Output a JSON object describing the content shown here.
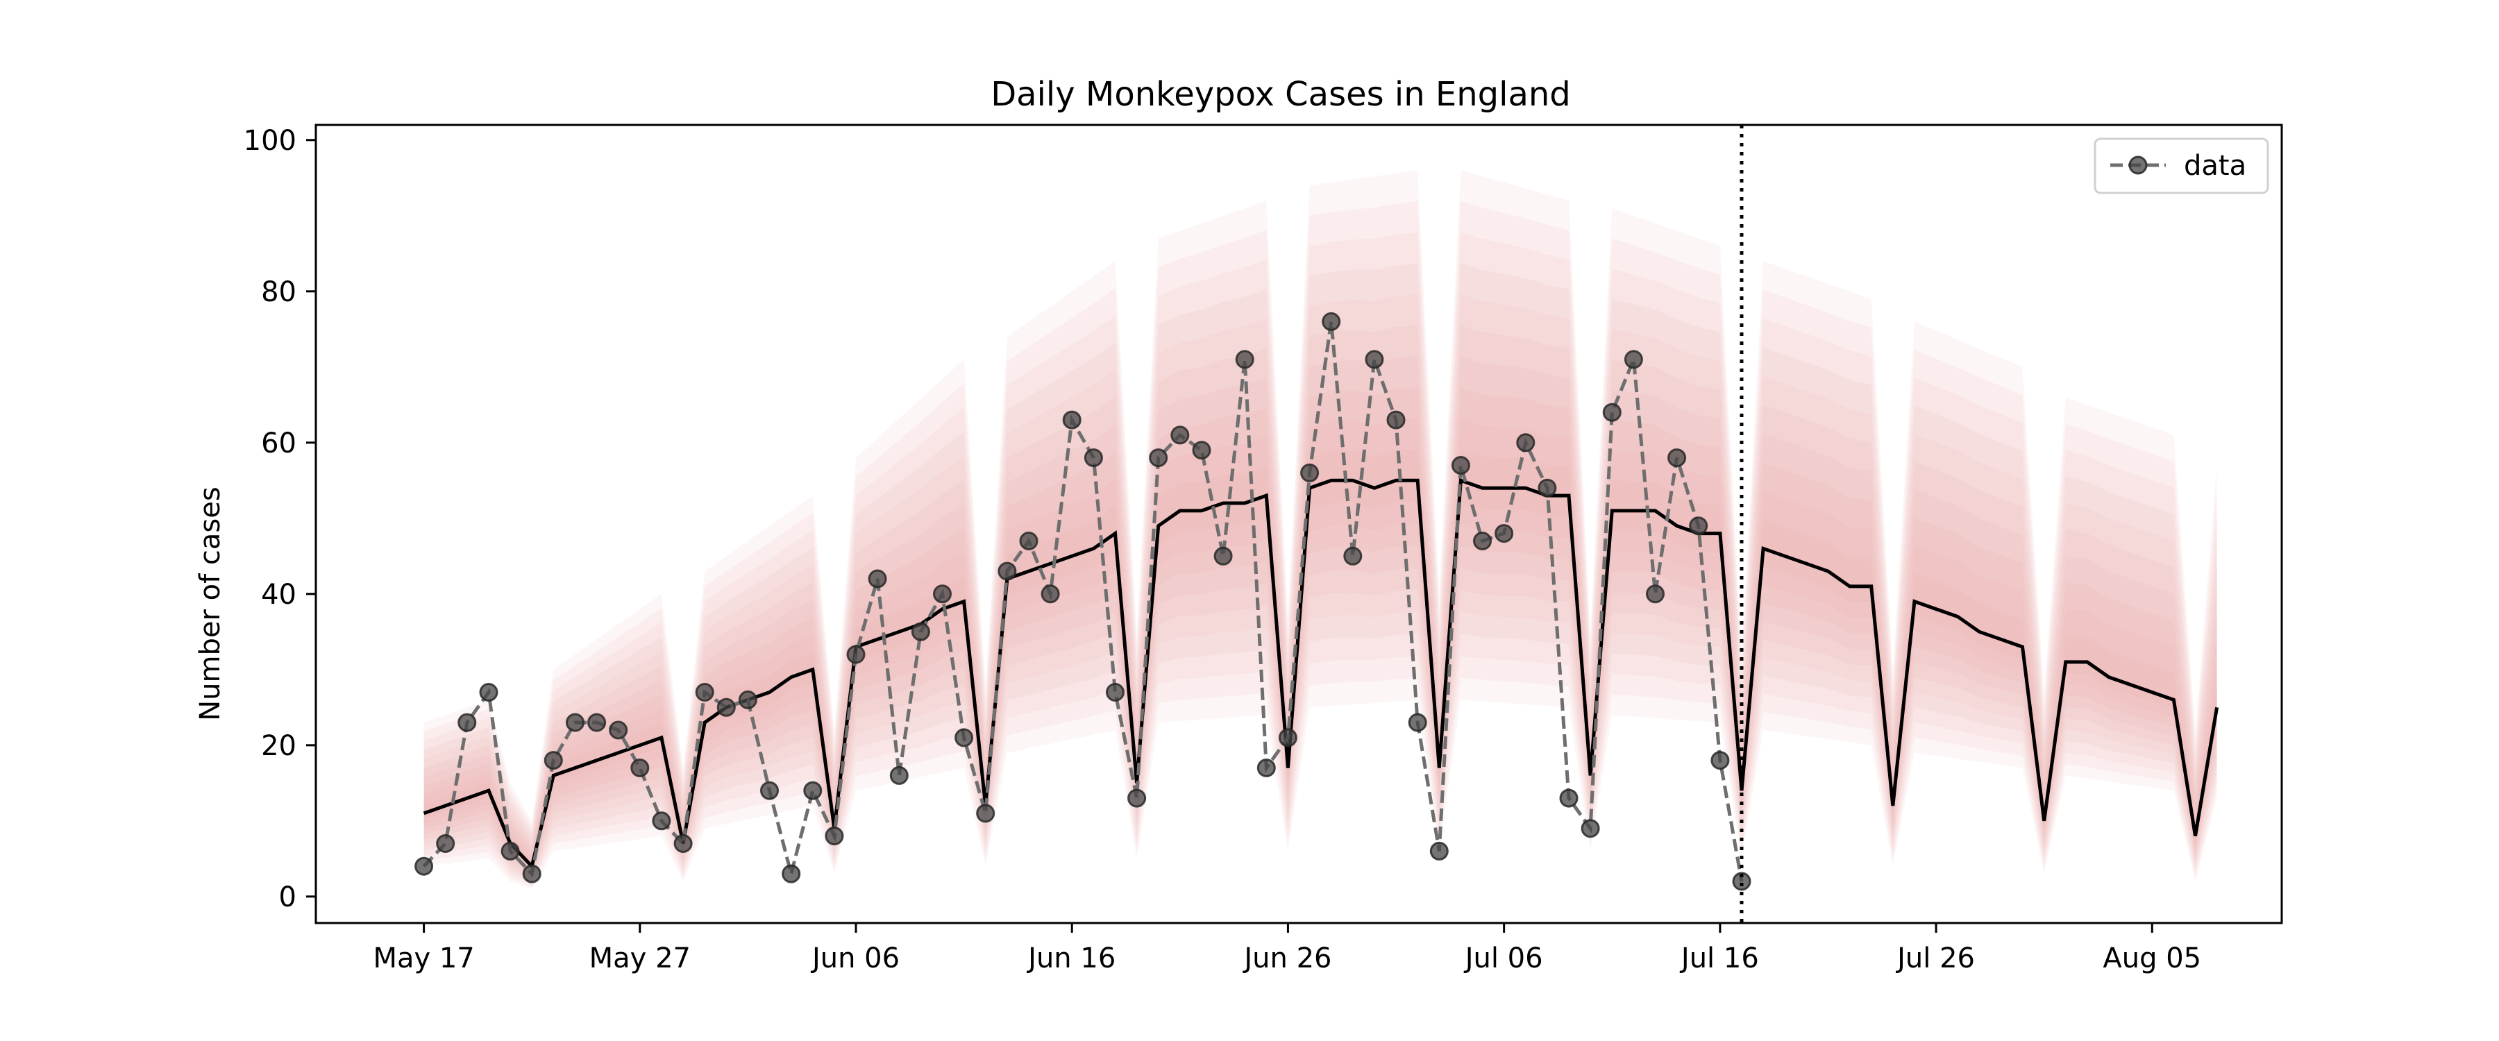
{
  "chart_data": {
    "type": "line",
    "title": "Daily Monkeypox Cases in England",
    "xlabel": "",
    "ylabel": "Number of cases",
    "x_axis": {
      "type": "date",
      "range": [
        "2022-05-12",
        "2022-08-11"
      ],
      "ticks": [
        {
          "date": "2022-05-17",
          "label": "May 17"
        },
        {
          "date": "2022-05-27",
          "label": "May 27"
        },
        {
          "date": "2022-06-06",
          "label": "Jun 06"
        },
        {
          "date": "2022-06-16",
          "label": "Jun 16"
        },
        {
          "date": "2022-06-26",
          "label": "Jun 26"
        },
        {
          "date": "2022-07-06",
          "label": "Jul 06"
        },
        {
          "date": "2022-07-16",
          "label": "Jul 16"
        },
        {
          "date": "2022-07-26",
          "label": "Jul 26"
        },
        {
          "date": "2022-08-05",
          "label": "Aug 05"
        }
      ]
    },
    "y_axis": {
      "range": [
        -3.5,
        102
      ],
      "ticks": [
        0,
        20,
        40,
        60,
        80,
        100
      ]
    },
    "grid": false,
    "legend": {
      "placement": "top-right",
      "entries": [
        "data"
      ]
    },
    "vertical_marker": {
      "date": "2022-07-17",
      "style": "dotted"
    },
    "series": [
      {
        "name": "data",
        "style": "dashed-gray-with-circles",
        "points": [
          [
            "2022-05-17",
            4
          ],
          [
            "2022-05-18",
            7
          ],
          [
            "2022-05-19",
            23
          ],
          [
            "2022-05-20",
            27
          ],
          [
            "2022-05-21",
            6
          ],
          [
            "2022-05-22",
            3
          ],
          [
            "2022-05-23",
            18
          ],
          [
            "2022-05-24",
            23
          ],
          [
            "2022-05-25",
            23
          ],
          [
            "2022-05-26",
            22
          ],
          [
            "2022-05-27",
            17
          ],
          [
            "2022-05-28",
            10
          ],
          [
            "2022-05-29",
            7
          ],
          [
            "2022-05-30",
            27
          ],
          [
            "2022-05-31",
            25
          ],
          [
            "2022-06-01",
            26
          ],
          [
            "2022-06-02",
            14
          ],
          [
            "2022-06-03",
            3
          ],
          [
            "2022-06-04",
            14
          ],
          [
            "2022-06-05",
            8
          ],
          [
            "2022-06-06",
            32
          ],
          [
            "2022-06-07",
            42
          ],
          [
            "2022-06-08",
            16
          ],
          [
            "2022-06-09",
            35
          ],
          [
            "2022-06-10",
            40
          ],
          [
            "2022-06-11",
            21
          ],
          [
            "2022-06-12",
            11
          ],
          [
            "2022-06-13",
            43
          ],
          [
            "2022-06-14",
            47
          ],
          [
            "2022-06-15",
            40
          ],
          [
            "2022-06-16",
            63
          ],
          [
            "2022-06-17",
            58
          ],
          [
            "2022-06-18",
            27
          ],
          [
            "2022-06-19",
            13
          ],
          [
            "2022-06-20",
            58
          ],
          [
            "2022-06-21",
            61
          ],
          [
            "2022-06-22",
            59
          ],
          [
            "2022-06-23",
            45
          ],
          [
            "2022-06-24",
            71
          ],
          [
            "2022-06-25",
            17
          ],
          [
            "2022-06-26",
            21
          ],
          [
            "2022-06-27",
            56
          ],
          [
            "2022-06-28",
            76
          ],
          [
            "2022-06-29",
            45
          ],
          [
            "2022-06-30",
            71
          ],
          [
            "2022-07-01",
            63
          ],
          [
            "2022-07-02",
            23
          ],
          [
            "2022-07-03",
            6
          ],
          [
            "2022-07-04",
            57
          ],
          [
            "2022-07-05",
            47
          ],
          [
            "2022-07-06",
            48
          ],
          [
            "2022-07-07",
            60
          ],
          [
            "2022-07-08",
            54
          ],
          [
            "2022-07-09",
            13
          ],
          [
            "2022-07-10",
            9
          ],
          [
            "2022-07-11",
            64
          ],
          [
            "2022-07-12",
            71
          ],
          [
            "2022-07-13",
            40
          ],
          [
            "2022-07-14",
            58
          ],
          [
            "2022-07-15",
            49
          ],
          [
            "2022-07-16",
            18
          ],
          [
            "2022-07-17",
            2
          ]
        ]
      },
      {
        "name": "",
        "style": "solid-black",
        "points": [
          [
            "2022-05-17",
            11
          ],
          [
            "2022-05-18",
            12
          ],
          [
            "2022-05-19",
            13
          ],
          [
            "2022-05-20",
            14
          ],
          [
            "2022-05-21",
            7
          ],
          [
            "2022-05-22",
            4
          ],
          [
            "2022-05-23",
            16
          ],
          [
            "2022-05-24",
            17
          ],
          [
            "2022-05-25",
            18
          ],
          [
            "2022-05-26",
            19
          ],
          [
            "2022-05-27",
            20
          ],
          [
            "2022-05-28",
            21
          ],
          [
            "2022-05-29",
            7
          ],
          [
            "2022-05-30",
            23
          ],
          [
            "2022-05-31",
            25
          ],
          [
            "2022-06-01",
            26
          ],
          [
            "2022-06-02",
            27
          ],
          [
            "2022-06-03",
            29
          ],
          [
            "2022-06-04",
            30
          ],
          [
            "2022-06-05",
            9
          ],
          [
            "2022-06-06",
            33
          ],
          [
            "2022-06-07",
            34
          ],
          [
            "2022-06-08",
            35
          ],
          [
            "2022-06-09",
            36
          ],
          [
            "2022-06-10",
            38
          ],
          [
            "2022-06-11",
            39
          ],
          [
            "2022-06-12",
            12
          ],
          [
            "2022-06-13",
            42
          ],
          [
            "2022-06-14",
            43
          ],
          [
            "2022-06-15",
            44
          ],
          [
            "2022-06-16",
            45
          ],
          [
            "2022-06-17",
            46
          ],
          [
            "2022-06-18",
            48
          ],
          [
            "2022-06-19",
            15
          ],
          [
            "2022-06-20",
            49
          ],
          [
            "2022-06-21",
            51
          ],
          [
            "2022-06-22",
            51
          ],
          [
            "2022-06-23",
            52
          ],
          [
            "2022-06-24",
            52
          ],
          [
            "2022-06-25",
            53
          ],
          [
            "2022-06-26",
            17
          ],
          [
            "2022-06-27",
            54
          ],
          [
            "2022-06-28",
            55
          ],
          [
            "2022-06-29",
            55
          ],
          [
            "2022-06-30",
            54
          ],
          [
            "2022-07-01",
            55
          ],
          [
            "2022-07-02",
            55
          ],
          [
            "2022-07-03",
            17
          ],
          [
            "2022-07-04",
            55
          ],
          [
            "2022-07-05",
            54
          ],
          [
            "2022-07-06",
            54
          ],
          [
            "2022-07-07",
            54
          ],
          [
            "2022-07-08",
            53
          ],
          [
            "2022-07-09",
            53
          ],
          [
            "2022-07-10",
            16
          ],
          [
            "2022-07-11",
            51
          ],
          [
            "2022-07-12",
            51
          ],
          [
            "2022-07-13",
            51
          ],
          [
            "2022-07-14",
            49
          ],
          [
            "2022-07-15",
            48
          ],
          [
            "2022-07-16",
            48
          ],
          [
            "2022-07-17",
            14
          ],
          [
            "2022-07-18",
            46
          ],
          [
            "2022-07-19",
            45
          ],
          [
            "2022-07-20",
            44
          ],
          [
            "2022-07-21",
            43
          ],
          [
            "2022-07-22",
            41
          ],
          [
            "2022-07-23",
            41
          ],
          [
            "2022-07-24",
            12
          ],
          [
            "2022-07-25",
            39
          ],
          [
            "2022-07-26",
            38
          ],
          [
            "2022-07-27",
            37
          ],
          [
            "2022-07-28",
            35
          ],
          [
            "2022-07-29",
            34
          ],
          [
            "2022-07-30",
            33
          ],
          [
            "2022-07-31",
            10
          ],
          [
            "2022-08-01",
            31
          ],
          [
            "2022-08-02",
            31
          ],
          [
            "2022-08-03",
            29
          ],
          [
            "2022-08-04",
            28
          ],
          [
            "2022-08-05",
            27
          ],
          [
            "2022-08-06",
            26
          ],
          [
            "2022-08-07",
            8
          ],
          [
            "2022-08-08",
            25
          ]
        ]
      }
    ],
    "uncertainty_band": {
      "color": "#e8a0a0",
      "max_upper": [
        [
          "2022-05-17",
          23
        ],
        [
          "2022-05-20",
          26
        ],
        [
          "2022-05-21",
          15
        ],
        [
          "2022-05-22",
          10
        ],
        [
          "2022-05-23",
          30
        ],
        [
          "2022-05-28",
          40
        ],
        [
          "2022-05-29",
          17
        ],
        [
          "2022-05-30",
          43
        ],
        [
          "2022-06-04",
          53
        ],
        [
          "2022-06-05",
          22
        ],
        [
          "2022-06-06",
          58
        ],
        [
          "2022-06-11",
          71
        ],
        [
          "2022-06-12",
          28
        ],
        [
          "2022-06-13",
          74
        ],
        [
          "2022-06-18",
          84
        ],
        [
          "2022-06-19",
          35
        ],
        [
          "2022-06-20",
          87
        ],
        [
          "2022-06-25",
          92
        ],
        [
          "2022-06-26",
          37
        ],
        [
          "2022-06-27",
          94
        ],
        [
          "2022-07-02",
          96
        ],
        [
          "2022-07-03",
          40
        ],
        [
          "2022-07-04",
          96
        ],
        [
          "2022-07-09",
          92
        ],
        [
          "2022-07-10",
          35
        ],
        [
          "2022-07-11",
          91
        ],
        [
          "2022-07-16",
          86
        ],
        [
          "2022-07-17",
          32
        ],
        [
          "2022-07-18",
          84
        ],
        [
          "2022-07-23",
          79
        ],
        [
          "2022-07-24",
          30
        ],
        [
          "2022-07-25",
          76
        ],
        [
          "2022-07-30",
          70
        ],
        [
          "2022-07-31",
          27
        ],
        [
          "2022-08-01",
          66
        ],
        [
          "2022-08-06",
          61
        ],
        [
          "2022-08-07",
          22
        ],
        [
          "2022-08-08",
          57
        ]
      ],
      "min_lower": [
        [
          "2022-05-17",
          4
        ],
        [
          "2022-05-20",
          5
        ],
        [
          "2022-05-21",
          2
        ],
        [
          "2022-05-22",
          1
        ],
        [
          "2022-05-23",
          6
        ],
        [
          "2022-05-28",
          8
        ],
        [
          "2022-05-29",
          2
        ],
        [
          "2022-05-30",
          9
        ],
        [
          "2022-06-04",
          12
        ],
        [
          "2022-06-05",
          3
        ],
        [
          "2022-06-06",
          14
        ],
        [
          "2022-06-11",
          17
        ],
        [
          "2022-06-12",
          4
        ],
        [
          "2022-06-13",
          19
        ],
        [
          "2022-06-18",
          22
        ],
        [
          "2022-06-19",
          5
        ],
        [
          "2022-06-20",
          23
        ],
        [
          "2022-06-25",
          24
        ],
        [
          "2022-06-26",
          6
        ],
        [
          "2022-06-27",
          25
        ],
        [
          "2022-07-02",
          26
        ],
        [
          "2022-07-03",
          6
        ],
        [
          "2022-07-04",
          26
        ],
        [
          "2022-07-09",
          25
        ],
        [
          "2022-07-10",
          6
        ],
        [
          "2022-07-11",
          24
        ],
        [
          "2022-07-16",
          23
        ],
        [
          "2022-07-17",
          5
        ],
        [
          "2022-07-18",
          22
        ],
        [
          "2022-07-23",
          20
        ],
        [
          "2022-07-24",
          4
        ],
        [
          "2022-07-25",
          19
        ],
        [
          "2022-07-30",
          17
        ],
        [
          "2022-07-31",
          3
        ],
        [
          "2022-08-01",
          16
        ],
        [
          "2022-08-06",
          14
        ],
        [
          "2022-08-07",
          2
        ],
        [
          "2022-08-08",
          13
        ]
      ]
    }
  }
}
